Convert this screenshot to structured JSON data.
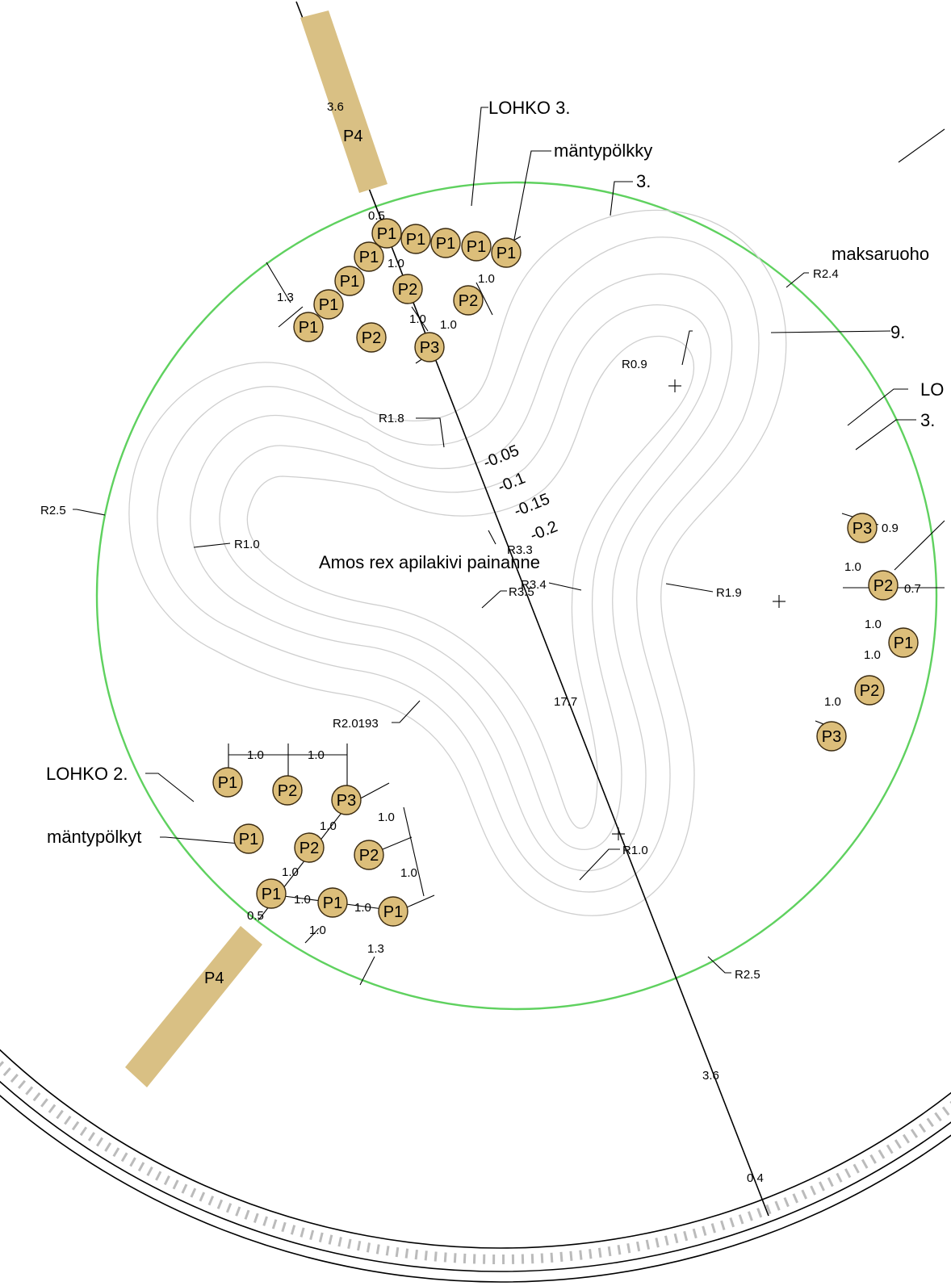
{
  "labels": {
    "lohko3": "LOHKO 3.",
    "lohko2": "LOHKO 2.",
    "lohko_right": "LO",
    "mantypolkky": "mäntypölkky",
    "mantypolkyt": "mäntypölkyt",
    "maksaruoho": "maksaruoho",
    "num3_top": "3.",
    "num9": "9.",
    "num3_right": "3.",
    "center_title": "Amos rex apilakivi painanne"
  },
  "radii": {
    "r24": "R2.4",
    "r09": "R0.9",
    "r18": "R1.8",
    "r25_left": "R2.5",
    "r10_left": "R1.0",
    "r33": "R3.3",
    "r34": "R3.4",
    "r35": "R3.5",
    "r19": "R1.9",
    "r20193": "R2.0193",
    "r10_bottom": "R1.0",
    "r25_bottom": "R2.5"
  },
  "slopes": [
    "-0.05",
    "-0.1",
    "-0.15",
    "-0.2"
  ],
  "dims": {
    "d36_top": "3.6",
    "d05_top": "0.5",
    "d10_a": "1.0",
    "d10_b": "1.0",
    "d10_c": "1.0",
    "d10_d": "1.0",
    "d13_top": "1.3",
    "d177": "17.7",
    "d36_bottom": "3.6",
    "d04": "0.4",
    "d09_right": "0.9",
    "d07_right": "0.7",
    "d10_r1": "1.0",
    "d10_r2": "1.0",
    "d10_r3": "1.0",
    "d10_r4": "1.0",
    "d10_h1": "1.0",
    "d10_h2": "1.0",
    "d10_bl1": "1.0",
    "d10_bl2": "1.0",
    "d10_bl3": "1.0",
    "d10_bl4": "1.0",
    "d10_bl5": "1.0",
    "d10_bl6": "1.0",
    "d10_bl7": "1.0",
    "d05_bottom": "0.5",
    "d13_bottom": "1.3"
  },
  "plants": {
    "top": [
      {
        "id": "t1",
        "label": "P1"
      },
      {
        "id": "t2",
        "label": "P1"
      },
      {
        "id": "t3",
        "label": "P1"
      },
      {
        "id": "t4",
        "label": "P1"
      },
      {
        "id": "t5",
        "label": "P1"
      },
      {
        "id": "t6",
        "label": "P1"
      },
      {
        "id": "t7",
        "label": "P1"
      },
      {
        "id": "t8",
        "label": "P1"
      },
      {
        "id": "t9",
        "label": "P1"
      },
      {
        "id": "t10",
        "label": "P2"
      },
      {
        "id": "t11",
        "label": "P2"
      },
      {
        "id": "t12",
        "label": "P2"
      },
      {
        "id": "t13",
        "label": "P3"
      }
    ],
    "right": [
      {
        "id": "r1",
        "label": "P3"
      },
      {
        "id": "r2",
        "label": "P2"
      },
      {
        "id": "r3",
        "label": "P1"
      },
      {
        "id": "r4",
        "label": "P2"
      },
      {
        "id": "r5",
        "label": "P3"
      }
    ],
    "bottom": [
      {
        "id": "b1",
        "label": "P1"
      },
      {
        "id": "b2",
        "label": "P2"
      },
      {
        "id": "b3",
        "label": "P3"
      },
      {
        "id": "b4",
        "label": "P1"
      },
      {
        "id": "b5",
        "label": "P2"
      },
      {
        "id": "b6",
        "label": "P2"
      },
      {
        "id": "b7",
        "label": "P1"
      },
      {
        "id": "b8",
        "label": "P1"
      },
      {
        "id": "b9",
        "label": "P1"
      }
    ]
  },
  "logs": {
    "top": "P4",
    "bottom": "P4"
  },
  "colors": {
    "plant_fill": "#dcbe7a",
    "log_fill": "#d9c084",
    "boundary": "#5fd15f",
    "contour": "#cfcfcf"
  }
}
